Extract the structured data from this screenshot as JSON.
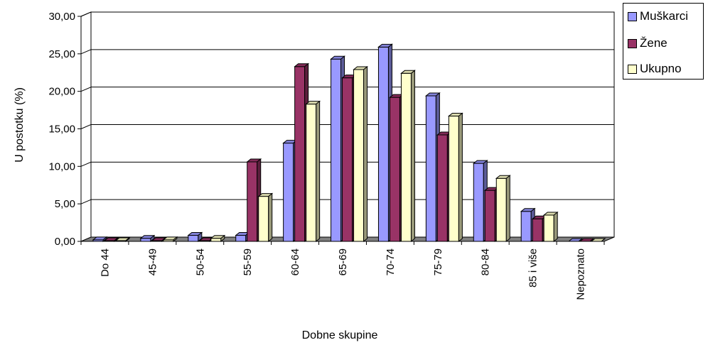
{
  "chart_data": {
    "type": "bar",
    "title": "",
    "xlabel": "Dobne skupine",
    "ylabel": "U postotku (%)",
    "ylim": [
      0,
      30
    ],
    "y_ticks": [
      "0,00",
      "5,00",
      "10,00",
      "15,00",
      "20,00",
      "25,00",
      "30,00"
    ],
    "grid": true,
    "legend_position": "top-right",
    "categories": [
      "Do 44",
      "45-49",
      "50-54",
      "55-59",
      "60-64",
      "65-69",
      "70-74",
      "75-79",
      "80-84",
      "85 i više",
      "Nepoznato"
    ],
    "series": [
      {
        "name": "Muškarci",
        "color": "#9999ff",
        "values": [
          0.2,
          0.4,
          0.8,
          0.8,
          13.1,
          24.3,
          25.9,
          19.4,
          10.4,
          4.0,
          0.0
        ]
      },
      {
        "name": "Žene",
        "color": "#993366",
        "values": [
          0.1,
          0.1,
          0.1,
          10.6,
          23.3,
          21.8,
          19.2,
          14.2,
          6.8,
          3.0,
          0.0
        ]
      },
      {
        "name": "Ukupno",
        "color": "#ffffcc",
        "values": [
          0.1,
          0.2,
          0.4,
          6.0,
          18.3,
          22.9,
          22.4,
          16.7,
          8.4,
          3.5,
          0.0
        ]
      }
    ]
  }
}
